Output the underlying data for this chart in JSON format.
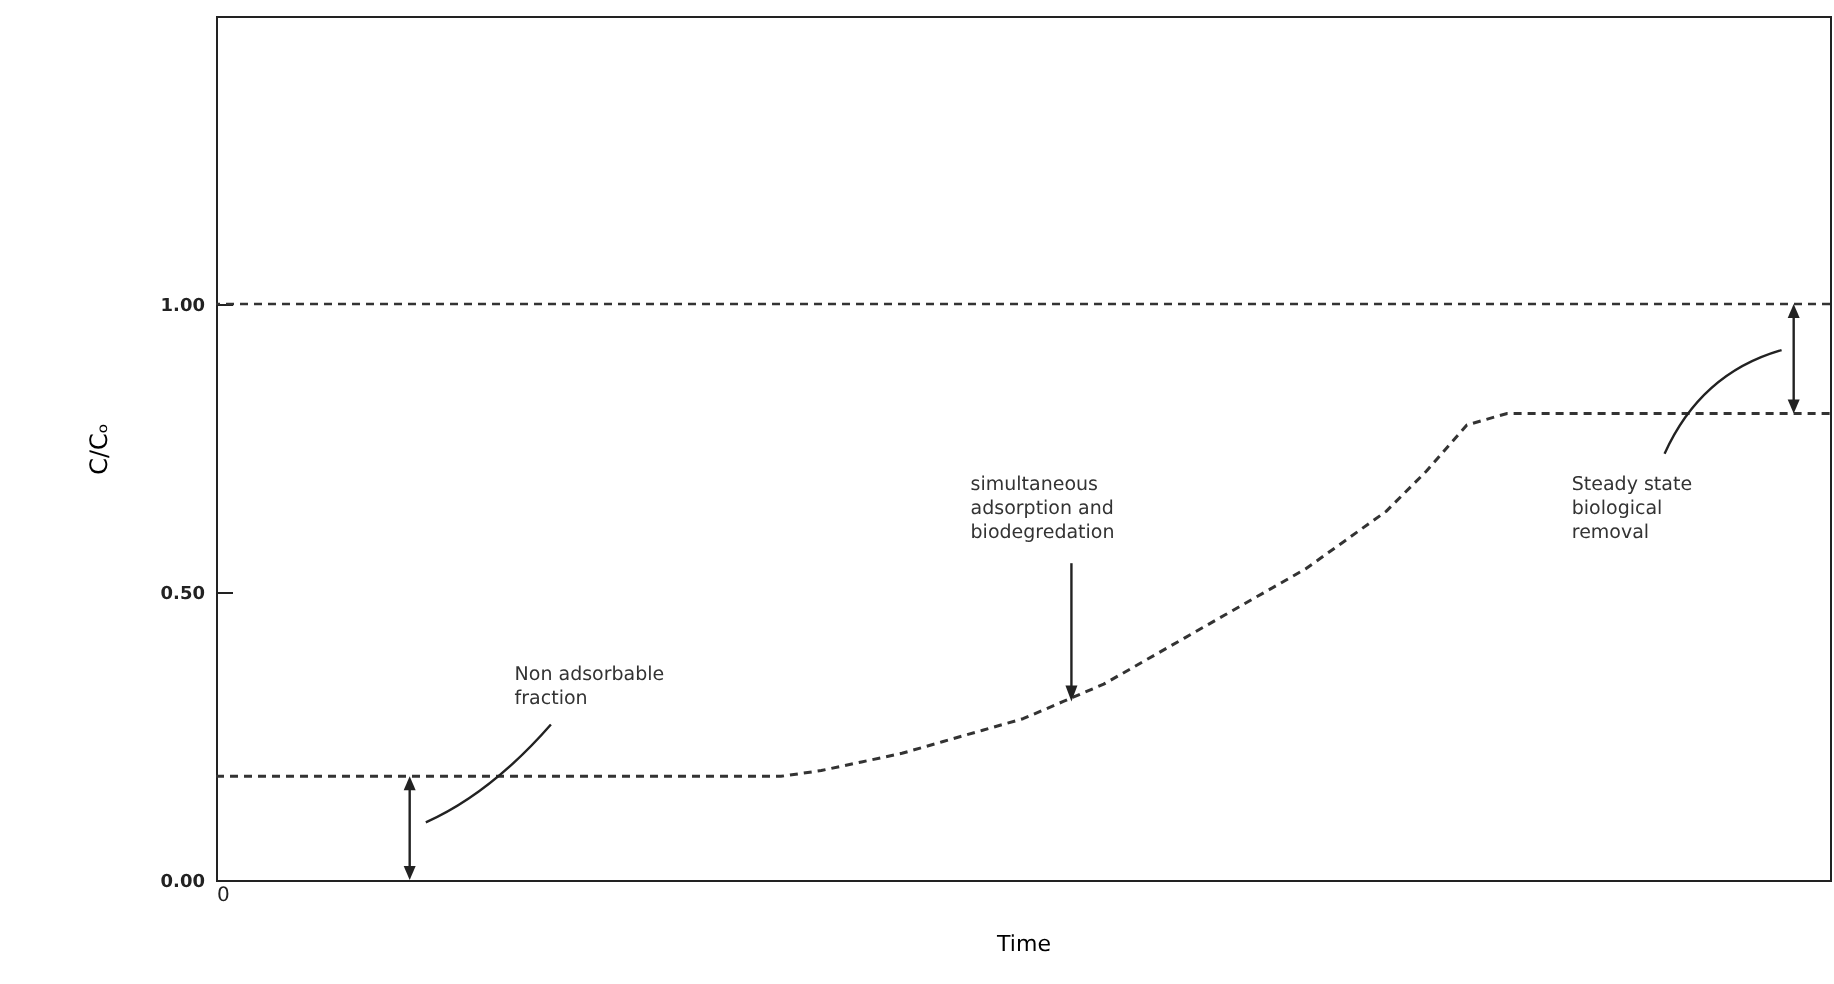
{
  "chart_data": {
    "type": "line",
    "xlabel": "Time",
    "ylabel": "C/Cₒ",
    "categories": [
      "0",
      null,
      null,
      null,
      null,
      null,
      null,
      null,
      null,
      null,
      null,
      null,
      null,
      null,
      null,
      null,
      null,
      null,
      null,
      null,
      null,
      null,
      null,
      null,
      null,
      null,
      null,
      null,
      null,
      null,
      null,
      null,
      null,
      null,
      null,
      null,
      null,
      null,
      null,
      null,
      null
    ],
    "series": [
      {
        "color": "#333333",
        "values": [
          0.18,
          0.18,
          0.18,
          0.18,
          0.18,
          0.18,
          0.18,
          0.18,
          0.18,
          0.18,
          0.18,
          0.18,
          0.18,
          0.18,
          0.18,
          0.19,
          0.205,
          0.22,
          0.24,
          0.26,
          0.28,
          0.31,
          0.34,
          0.38,
          0.42,
          0.46,
          0.5,
          0.54,
          0.59,
          0.64,
          0.71,
          0.79,
          0.81,
          0.81,
          0.81,
          0.81,
          0.81,
          0.81,
          0.81,
          0.81,
          0.81
        ]
      }
    ],
    "ylim": [
      0,
      1.5
    ],
    "yticks": [
      {
        "value": 0,
        "label": "0.00"
      },
      {
        "value": 0.5,
        "label": "0.50"
      },
      {
        "value": 1,
        "label": "1.00"
      }
    ],
    "ref_lines": [
      {
        "axis": "y",
        "value": 1,
        "color": "#333333",
        "line_style": "dashed"
      }
    ],
    "annotations": [
      "Non adsorbable\nfraction",
      "simultaneous\nadsorption and\nbiodegredation",
      "Steady state\nbiological\nremoval"
    ],
    "line_style": "dashed",
    "marker": "none",
    "grid": false
  }
}
